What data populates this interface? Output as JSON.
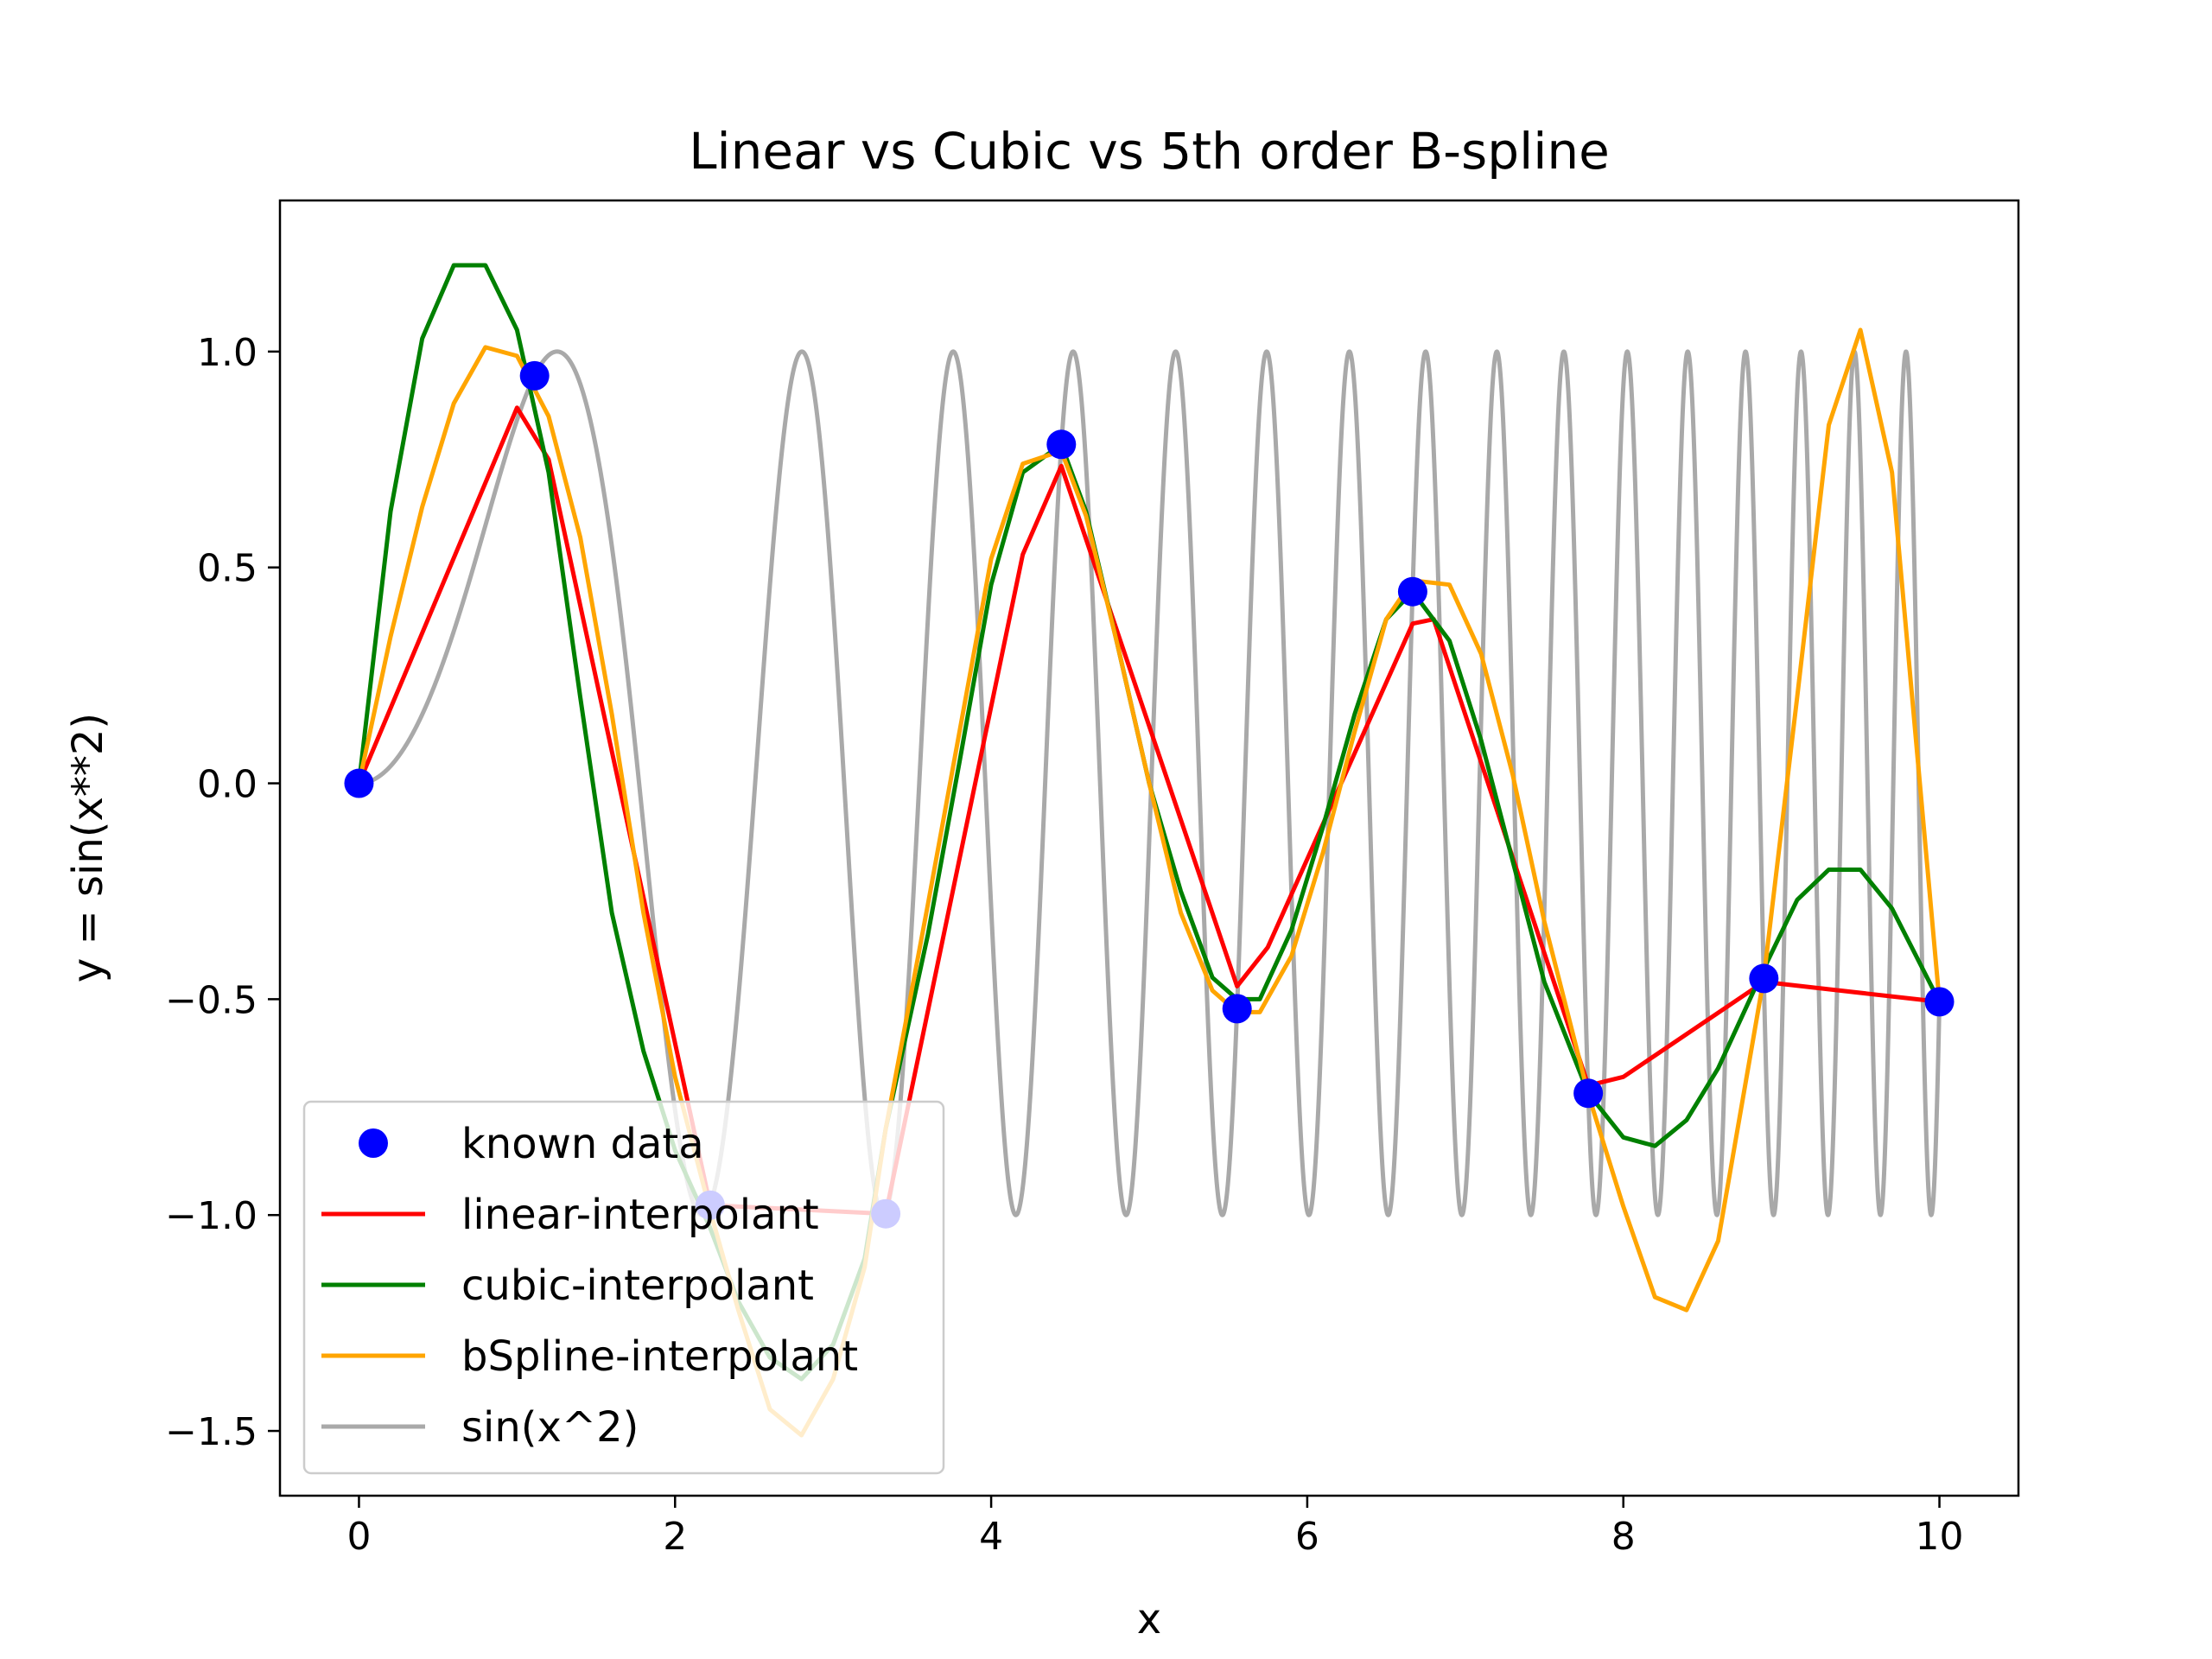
{
  "chart_data": {
    "type": "line",
    "title": "Linear vs Cubic vs 5th order B-spline",
    "xlabel": "x",
    "ylabel": "y = sin(x**2)",
    "xlim": [
      -0.5,
      10.5
    ],
    "ylim": [
      -1.65,
      1.35
    ],
    "xticks": [
      0,
      2,
      4,
      6,
      8,
      10
    ],
    "xtick_labels": [
      "0",
      "2",
      "4",
      "6",
      "8",
      "10"
    ],
    "yticks": [
      1.0,
      0.5,
      0.0,
      -0.5,
      -1.0,
      -1.5
    ],
    "ytick_labels": [
      "1.0",
      "0.5",
      "0.0",
      "−0.5",
      "−1.0",
      "−1.5"
    ],
    "grid": false,
    "legend_position": "lower-left",
    "series": [
      {
        "name": "known data",
        "kind": "markers",
        "color": "#0000ff",
        "x": [
          0,
          1.111,
          2.222,
          3.333,
          4.444,
          5.556,
          6.667,
          7.778,
          8.889,
          10
        ],
        "y": [
          0.0,
          0.944,
          -0.977,
          -0.997,
          0.785,
          -0.522,
          0.444,
          -0.718,
          -0.452,
          -0.506
        ]
      },
      {
        "name": "linear-interpolant",
        "kind": "line",
        "color": "#ff0000",
        "x": [
          0,
          1.0,
          1.2,
          2.222,
          3.333,
          4.2,
          4.444,
          5.556,
          5.75,
          6.667,
          6.8,
          7.778,
          8.0,
          8.889,
          10
        ],
        "y": [
          0.0,
          0.87,
          0.75,
          -0.977,
          -0.997,
          0.53,
          0.735,
          -0.47,
          -0.38,
          0.37,
          0.38,
          -0.7,
          -0.68,
          -0.46,
          -0.506
        ]
      },
      {
        "name": "cubic-interpolant",
        "kind": "line",
        "color": "#008000",
        "x": [
          0,
          0.2,
          0.4,
          0.6,
          0.8,
          1.0,
          1.2,
          1.4,
          1.6,
          1.8,
          2.0,
          2.222,
          2.4,
          2.6,
          2.8,
          3.0,
          3.2,
          3.333,
          3.6,
          3.8,
          4.0,
          4.2,
          4.444,
          4.6,
          4.8,
          5.0,
          5.2,
          5.4,
          5.556,
          5.7,
          5.9,
          6.1,
          6.3,
          6.5,
          6.667,
          6.9,
          7.1,
          7.3,
          7.5,
          7.778,
          8.0,
          8.2,
          8.4,
          8.6,
          8.889,
          9.1,
          9.3,
          9.5,
          9.7,
          10
        ],
        "y": [
          0.0,
          0.63,
          1.03,
          1.2,
          1.2,
          1.05,
          0.72,
          0.2,
          -0.3,
          -0.62,
          -0.85,
          -1.03,
          -1.2,
          -1.33,
          -1.38,
          -1.3,
          -1.1,
          -0.8,
          -0.35,
          0.05,
          0.46,
          0.72,
          0.785,
          0.63,
          0.32,
          0.0,
          -0.25,
          -0.45,
          -0.5,
          -0.5,
          -0.34,
          -0.1,
          0.16,
          0.38,
          0.444,
          0.33,
          0.1,
          -0.18,
          -0.46,
          -0.718,
          -0.82,
          -0.84,
          -0.78,
          -0.66,
          -0.43,
          -0.27,
          -0.2,
          -0.2,
          -0.29,
          -0.506
        ]
      },
      {
        "name": "bSpline-interpolant",
        "kind": "line",
        "color": "#ffa500",
        "x": [
          0,
          0.2,
          0.4,
          0.6,
          0.8,
          1.0,
          1.2,
          1.4,
          1.6,
          1.8,
          2.0,
          2.222,
          2.4,
          2.6,
          2.8,
          3.0,
          3.2,
          3.333,
          3.6,
          3.8,
          4.0,
          4.2,
          4.444,
          4.6,
          4.8,
          5.0,
          5.2,
          5.4,
          5.556,
          5.7,
          5.9,
          6.1,
          6.3,
          6.5,
          6.667,
          6.9,
          7.1,
          7.3,
          7.5,
          7.778,
          8.0,
          8.2,
          8.4,
          8.6,
          8.889,
          9.1,
          9.3,
          9.5,
          9.7,
          10
        ],
        "y": [
          0.0,
          0.34,
          0.64,
          0.88,
          1.01,
          0.99,
          0.85,
          0.57,
          0.16,
          -0.3,
          -0.68,
          -0.99,
          -1.22,
          -1.45,
          -1.51,
          -1.38,
          -1.12,
          -0.8,
          -0.28,
          0.12,
          0.52,
          0.74,
          0.77,
          0.62,
          0.32,
          0.0,
          -0.3,
          -0.48,
          -0.53,
          -0.53,
          -0.4,
          -0.16,
          0.12,
          0.38,
          0.47,
          0.46,
          0.3,
          0.02,
          -0.32,
          -0.72,
          -0.98,
          -1.19,
          -1.22,
          -1.06,
          -0.45,
          0.2,
          0.83,
          1.05,
          0.72,
          -0.506
        ]
      },
      {
        "name": "sin(x^2)",
        "kind": "function",
        "function": "sin(x^2)",
        "domain": [
          0,
          10
        ],
        "samples": 4000,
        "color": "#a9a9a9"
      }
    ]
  }
}
